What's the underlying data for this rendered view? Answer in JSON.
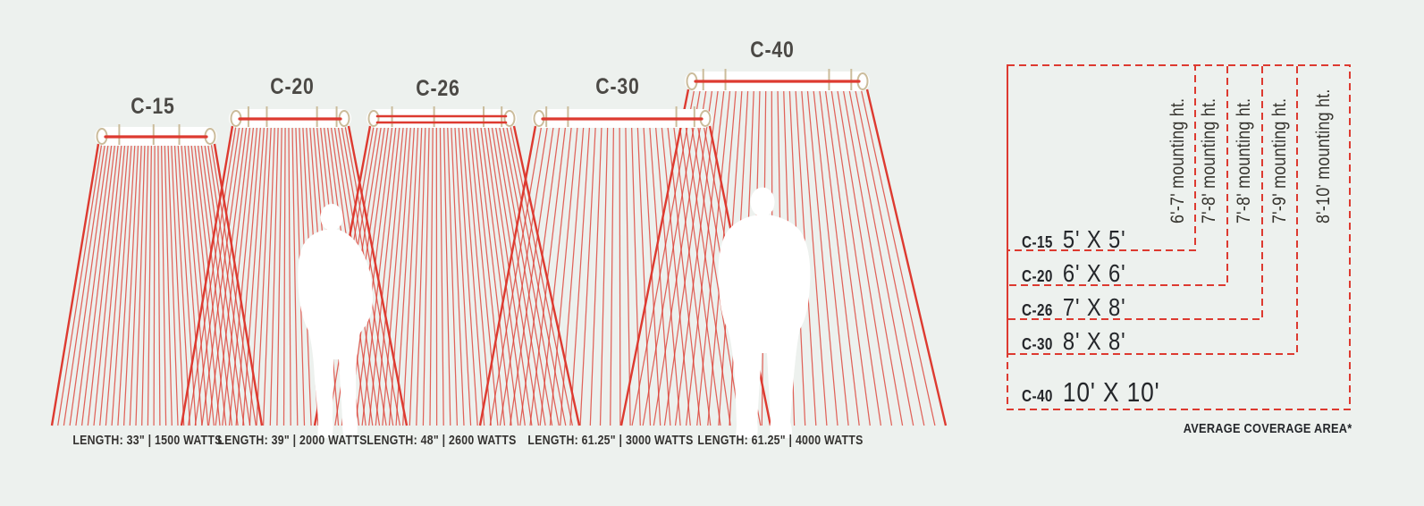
{
  "colors": {
    "background": "#edf1ee",
    "red": "#dd3a30",
    "tan": "#cbbc9b",
    "heater_body": "#ffffff",
    "label_gray": "#4b4945",
    "text_dark": "#24262a",
    "silhouette": "#ffffff"
  },
  "models": [
    {
      "code": "C-15",
      "caption": "LENGTH: 33\" | 1500 WATTS",
      "length": "33\"",
      "watts": "1500 WATTS",
      "coverage": "5' X 5'",
      "mounting_height": "6'-7' mounting ht."
    },
    {
      "code": "C-20",
      "caption": "LENGTH: 39\" | 2000 WATTS",
      "length": "39\"",
      "watts": "2000 WATTS",
      "coverage": "6' X 6'",
      "mounting_height": "7'-8' mounting ht."
    },
    {
      "code": "C-26",
      "caption": "LENGTH: 48\" | 2600 WATTS",
      "length": "48\"",
      "watts": "2600 WATTS",
      "coverage": "7' X 8'",
      "mounting_height": "7'-8' mounting ht."
    },
    {
      "code": "C-30",
      "caption": "LENGTH: 61.25\" | 3000 WATTS",
      "length": "61.25\"",
      "watts": "3000 WATTS",
      "coverage": "8' X 8'",
      "mounting_height": "7'-9' mounting ht."
    },
    {
      "code": "C-40",
      "caption": "LENGTH: 61.25\" | 4000 WATTS",
      "length": "61.25\"",
      "watts": "4000 WATTS",
      "coverage": "10' X 10'",
      "mounting_height": "8'-10' mounting ht."
    }
  ],
  "coverage_panel": {
    "footnote": "AVERAGE COVERAGE AREA*"
  }
}
